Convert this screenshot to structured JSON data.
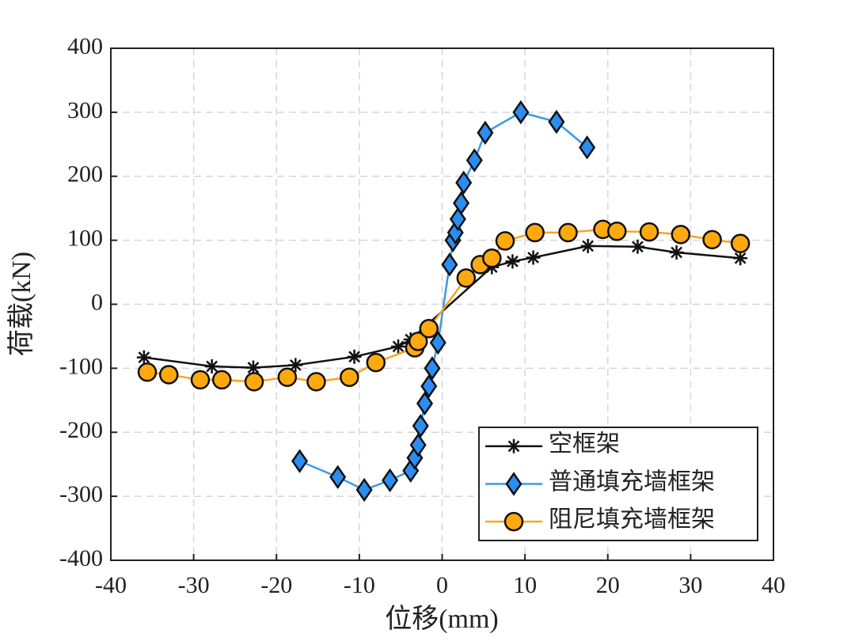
{
  "chart_data": {
    "type": "line",
    "xlabel": "位移(mm)",
    "ylabel": "荷载(kN)",
    "xlim": [
      -40,
      40
    ],
    "xticks": [
      -40,
      -30,
      -20,
      -10,
      0,
      10,
      20,
      30,
      40
    ],
    "ylim": [
      -400,
      400
    ],
    "yticks": [
      -400,
      -300,
      -200,
      -100,
      0,
      100,
      200,
      300,
      400
    ],
    "grid": true,
    "legend": "lower right",
    "series": [
      {
        "name": "空框架",
        "color": "#111111",
        "marker": "asterisk",
        "marker_color": "#111111",
        "x": [
          -36,
          -27.8,
          -22.8,
          -17.7,
          -10.6,
          -5.3,
          -3.8,
          6,
          8.5,
          11,
          17.6,
          23.6,
          28.3,
          36
        ],
        "values": [
          -83,
          -97,
          -99,
          -95,
          -82,
          -66,
          -55,
          58,
          67,
          73,
          91,
          90,
          81,
          72
        ]
      },
      {
        "name": "普通填充墙框架",
        "color": "#3a9ae8",
        "marker": "diamond",
        "marker_color": "#2b8df0",
        "x": [
          -17.2,
          -12.6,
          -9.4,
          -6.3,
          -3.8,
          -3.3,
          -2.9,
          -2.6,
          -2.1,
          -1.6,
          -1.2,
          -0.5,
          0.9,
          1.3,
          1.6,
          1.9,
          2.3,
          2.6,
          3.9,
          5.2,
          9.5,
          13.8,
          17.5
        ],
        "values": [
          -245,
          -270,
          -290,
          -275,
          -260,
          -240,
          -220,
          -190,
          -155,
          -128,
          -100,
          -60,
          62,
          100,
          112,
          133,
          158,
          190,
          225,
          268,
          300,
          285,
          245
        ]
      },
      {
        "name": "阻尼填充墙框架",
        "color": "#f5a623",
        "marker": "circle",
        "marker_color": "#ffa90f",
        "x": [
          -35.6,
          -33,
          -29.2,
          -26.6,
          -22.7,
          -18.7,
          -15.2,
          -11.2,
          -8,
          -3.3,
          -2.9,
          -1.6,
          2.9,
          4.6,
          6,
          7.6,
          11.2,
          15.2,
          19.4,
          21.1,
          25,
          28.8,
          32.6,
          36
        ],
        "values": [
          -106,
          -110,
          -118,
          -118,
          -121,
          -114,
          -121,
          -114,
          -91,
          -68,
          -58,
          -38,
          41,
          62,
          72,
          99,
          112,
          112,
          117,
          114,
          113,
          109,
          101,
          95
        ]
      }
    ]
  }
}
